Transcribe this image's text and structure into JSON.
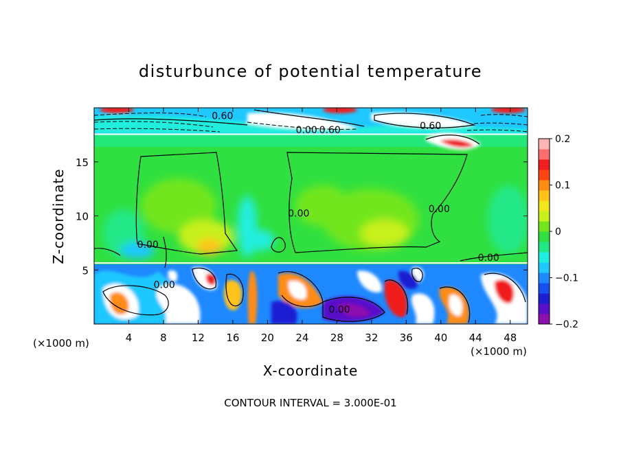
{
  "chart_data": {
    "type": "heatmap",
    "title": "disturbunce of potential temperature",
    "xlabel": "X-coordinate",
    "ylabel": "Z-coordinate",
    "x_unit_left": "(×1000 m)",
    "x_unit_right": "(×1000 m)",
    "xlim": [
      0,
      50
    ],
    "ylim": [
      0,
      20
    ],
    "x_ticks": [
      {
        "v": 4,
        "label": "4"
      },
      {
        "v": 8,
        "label": "8"
      },
      {
        "v": 12,
        "label": "12"
      },
      {
        "v": 16,
        "label": "16"
      },
      {
        "v": 20,
        "label": "20"
      },
      {
        "v": 24,
        "label": "24"
      },
      {
        "v": 28,
        "label": "28"
      },
      {
        "v": 32,
        "label": "32"
      },
      {
        "v": 36,
        "label": "36"
      },
      {
        "v": 40,
        "label": "40"
      },
      {
        "v": 44,
        "label": "44"
      },
      {
        "v": 48,
        "label": "48"
      }
    ],
    "y_ticks": [
      {
        "v": 5,
        "label": "5"
      },
      {
        "v": 10,
        "label": "10"
      },
      {
        "v": 15,
        "label": "15"
      }
    ],
    "colorbar": {
      "min": -0.2,
      "max": 0.2,
      "ticks": [
        {
          "v": 0.2,
          "label": "0.2"
        },
        {
          "v": 0.1,
          "label": "0.1"
        },
        {
          "v": 0,
          "label": "0"
        },
        {
          "v": -0.1,
          "label": "−0.1"
        },
        {
          "v": -0.2,
          "label": "−0.2"
        }
      ],
      "colors": [
        "#8e0fae",
        "#5a0fc8",
        "#1f1fd2",
        "#1450f0",
        "#1e88ff",
        "#1fc8ff",
        "#20eede",
        "#22e888",
        "#30e040",
        "#72e61a",
        "#c8f01e",
        "#f0e61e",
        "#ffc21a",
        "#ff8c12",
        "#ff4612",
        "#f01e1e",
        "#fa6e6e",
        "#ffb4b4"
      ]
    },
    "contour_labels": [
      {
        "x": 14.8,
        "y": 19.2,
        "text": "0.60"
      },
      {
        "x": 27.2,
        "y": 17.9,
        "text": "0.60"
      },
      {
        "x": 38.8,
        "y": 18.3,
        "text": "0.60"
      },
      {
        "x": 24.5,
        "y": 17.9,
        "text": "0.00"
      },
      {
        "x": 23.6,
        "y": 10.2,
        "text": "0.00"
      },
      {
        "x": 39.8,
        "y": 10.6,
        "text": "0.00"
      },
      {
        "x": 6.2,
        "y": 7.3,
        "text": "0.00"
      },
      {
        "x": 8.1,
        "y": 3.6,
        "text": "0.00"
      },
      {
        "x": 28.3,
        "y": 1.3,
        "text": "0.00"
      },
      {
        "x": 45.5,
        "y": 6.1,
        "text": "0.00"
      }
    ],
    "grid": false,
    "annotation": "CONTOUR INTERVAL = 3.000E-01"
  }
}
